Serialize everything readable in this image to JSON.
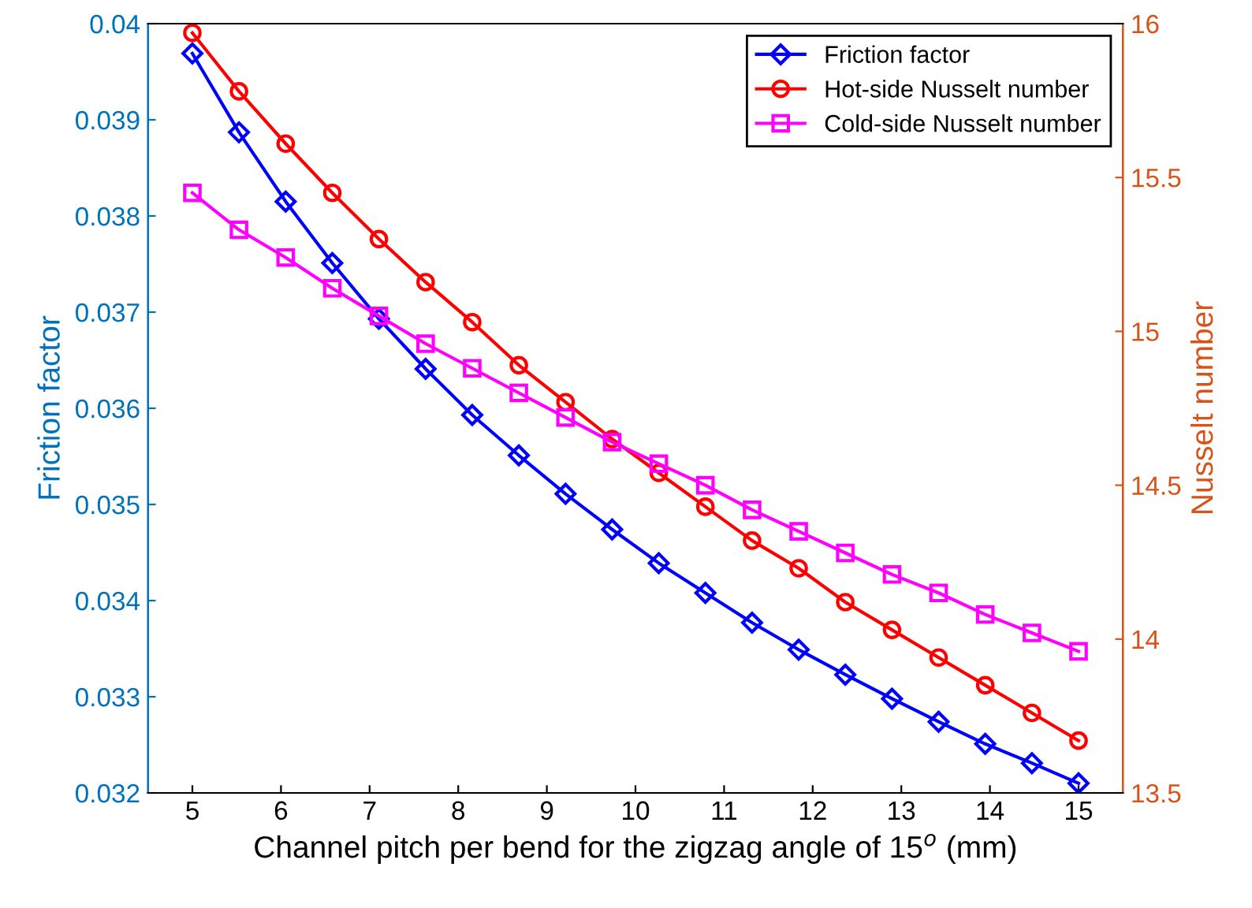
{
  "chart_data": {
    "type": "line",
    "xlabel": "Channel pitch per bend for the zigzag angle of 15$^{o}$ (mm)",
    "ylabel": "Friction factor",
    "y2label": "Nusselt number",
    "x": [
      5,
      5.526,
      6.053,
      6.579,
      7.105,
      7.632,
      8.158,
      8.684,
      9.211,
      9.737,
      10.263,
      10.789,
      11.316,
      11.842,
      12.368,
      12.895,
      13.421,
      13.947,
      14.474,
      15
    ],
    "series": [
      {
        "name": "Friction factor",
        "color": "#0000ff",
        "marker": "diamond",
        "values": [
          0.03969,
          0.03887,
          0.03815,
          0.03751,
          0.03693,
          0.03641,
          0.03593,
          0.03551,
          0.03511,
          0.03474,
          0.03439,
          0.03408,
          0.03377,
          0.03349,
          0.03323,
          0.03298,
          0.03274,
          0.03251,
          0.03231,
          0.0321
        ]
      },
      {
        "name": "Hot-side Nusselt number",
        "color": "#ff0000",
        "marker": "circle",
        "axis": "y2",
        "values": [
          15.97,
          15.78,
          15.61,
          15.45,
          15.3,
          15.16,
          15.03,
          14.89,
          14.77,
          14.65,
          14.54,
          14.43,
          14.32,
          14.23,
          14.12,
          14.03,
          13.94,
          13.85,
          13.76,
          13.67
        ]
      },
      {
        "name": "Cold-side Nusselt number",
        "color": "#ff00ff",
        "marker": "square",
        "axis": "y2",
        "values": [
          15.45,
          15.33,
          15.24,
          15.14,
          15.05,
          14.96,
          14.88,
          14.8,
          14.72,
          14.64,
          14.57,
          14.5,
          14.42,
          14.35,
          14.28,
          14.21,
          14.15,
          14.08,
          14.02,
          13.96
        ]
      }
    ],
    "xlim": [
      4.5,
      15.5
    ],
    "xticks": [
      5,
      6,
      7,
      8,
      9,
      10,
      11,
      12,
      13,
      14,
      15
    ],
    "ylim": [
      0.032,
      0.04
    ],
    "yticks": [
      0.032,
      0.033,
      0.034,
      0.035,
      0.036,
      0.037,
      0.038,
      0.039,
      0.04
    ],
    "y2lim": [
      13.5,
      16
    ],
    "y2ticks": [
      13.5,
      14,
      14.5,
      15,
      15.5,
      16
    ],
    "legend": "top right",
    "grid": false,
    "line_style": "solid"
  }
}
